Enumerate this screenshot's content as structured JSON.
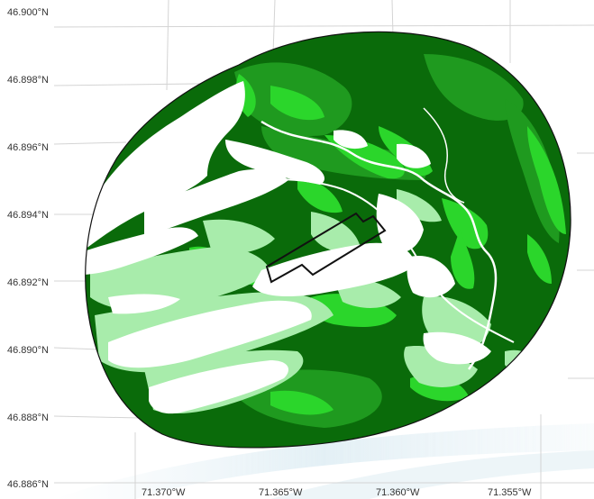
{
  "map": {
    "latitude_labels": [
      "46.900°N",
      "46.898°N",
      "46.896°N",
      "46.894°N",
      "46.892°N",
      "46.890°N",
      "46.888°N",
      "46.886°N"
    ],
    "longitude_labels": [
      "71.370°W",
      "71.365°W",
      "71.360°W",
      "71.355°W"
    ],
    "colors": {
      "dark_green": "#0a6b0a",
      "medium_green": "#1f9a1f",
      "bright_green": "#2bd62b",
      "light_green": "#a8ecab",
      "urban_white": "#ffffff",
      "site_outline": "#111111",
      "basemap_grid": "#d4d4d4"
    },
    "legend": []
  }
}
